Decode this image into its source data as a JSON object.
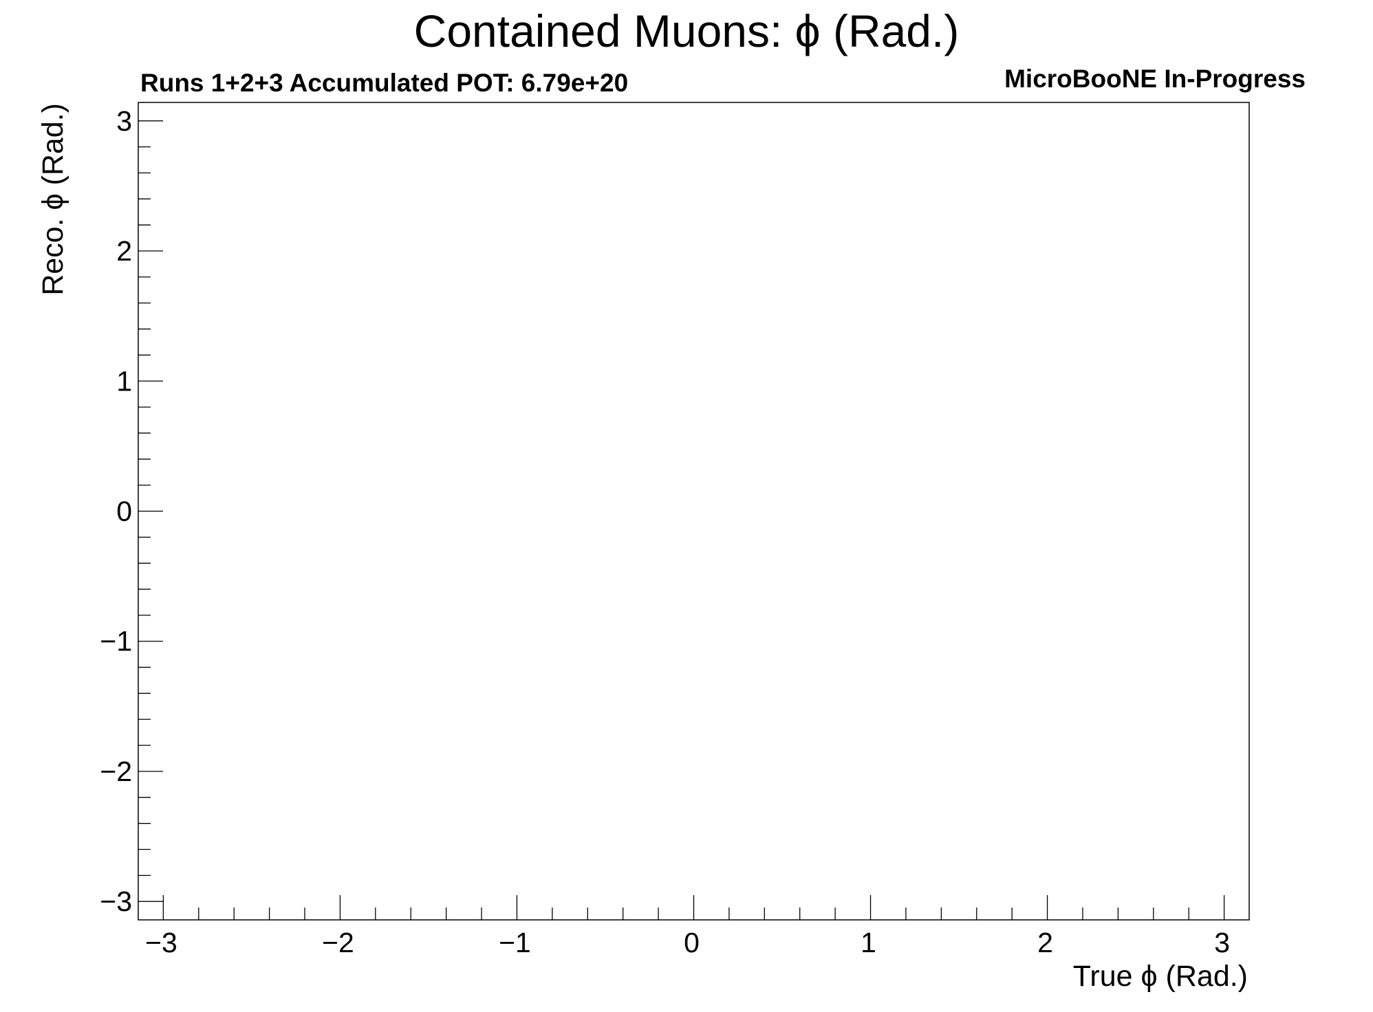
{
  "chart_data": {
    "type": "heatmap",
    "title": "Contained Muons: ϕ (Rad.)",
    "subtitle_left": "Runs 1+2+3 Accumulated POT: 6.79e+20",
    "subtitle_right": "MicroBooNE In-Progress",
    "xlabel": "True ϕ (Rad.)",
    "ylabel": "Reco. ϕ (Rad.)",
    "xlim": [
      -3.14159,
      3.14159
    ],
    "ylim": [
      -3.14159,
      3.14159
    ],
    "x_ticks": [
      -3,
      -2,
      -1,
      0,
      1,
      2,
      3
    ],
    "y_ticks": [
      -3,
      -2,
      -1,
      0,
      1,
      2,
      3
    ],
    "x_tick_labels": [
      "−3",
      "−2",
      "−1",
      "0",
      "1",
      "2",
      "3"
    ],
    "y_tick_labels": [
      "−3",
      "−2",
      "−1",
      "0",
      "1",
      "2",
      "3"
    ],
    "minor_tick_step": 0.2,
    "grid": false,
    "values": []
  }
}
